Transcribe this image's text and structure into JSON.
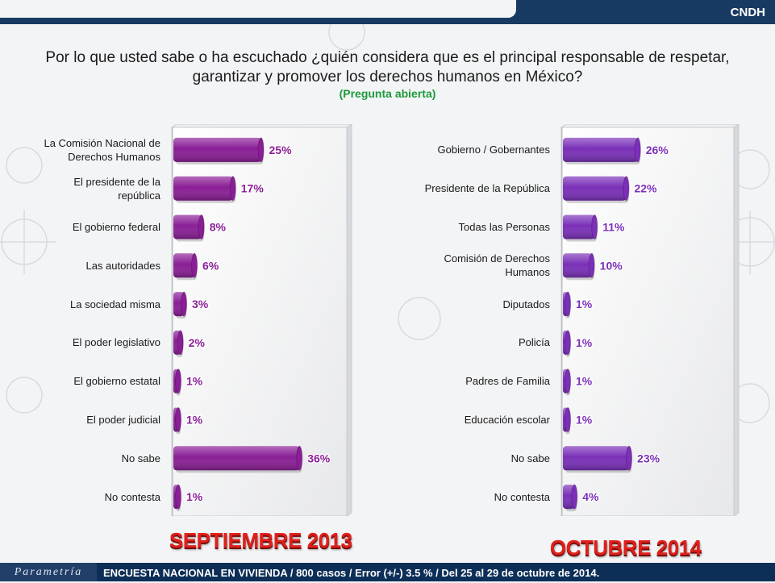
{
  "header": {
    "badge": "CNDH"
  },
  "question": {
    "line1": "Por lo que usted sabe o ha escuchado ¿quién considera que es el principal responsable de respetar,",
    "line2": "garantizar y promover los derechos humanos en México?",
    "note": "(Pregunta abierta)"
  },
  "colors": {
    "bar_left": "#8a1e96",
    "bar_right": "#7a30b8",
    "period": "#e0201b",
    "note": "#1d9b3c"
  },
  "chart_data": [
    {
      "type": "bar",
      "orientation": "horizontal",
      "period": "SEPTIEMBRE 2013",
      "categories": [
        "La Comisión Nacional de Derechos Humanos",
        "El presidente de la república",
        "El gobierno federal",
        "Las autoridades",
        "La sociedad misma",
        "El poder legislativo",
        "El gobierno estatal",
        "El poder judicial",
        "No sabe",
        "No contesta"
      ],
      "label_lines": [
        [
          "La Comisión Nacional de",
          "Derechos Humanos"
        ],
        [
          "El presidente de la",
          "república"
        ],
        [
          "El gobierno federal"
        ],
        [
          "Las autoridades"
        ],
        [
          "La sociedad misma"
        ],
        [
          "El poder legislativo"
        ],
        [
          "El gobierno estatal"
        ],
        [
          "El poder judicial"
        ],
        [
          "No sabe"
        ],
        [
          "No contesta"
        ]
      ],
      "values": [
        25,
        17,
        8,
        6,
        3,
        2,
        1,
        1,
        36,
        1
      ],
      "data_labels": [
        "25%",
        "17%",
        "8%",
        "6%",
        "3%",
        "2%",
        "1%",
        "1%",
        "36%",
        "1%"
      ],
      "xlim": [
        0,
        50
      ],
      "unit": "%"
    },
    {
      "type": "bar",
      "orientation": "horizontal",
      "period": "OCTUBRE 2014",
      "categories": [
        "Gobierno / Gobernantes",
        "Presidente de la República",
        "Todas las Personas",
        "Comisión de Derechos Humanos",
        "Diputados",
        "Policía",
        "Padres de Familia",
        "Educación escolar",
        "No sabe",
        "No contesta"
      ],
      "label_lines": [
        [
          "Gobierno / Gobernantes"
        ],
        [
          "Presidente de la República"
        ],
        [
          "Todas las Personas"
        ],
        [
          "Comisión de Derechos",
          "Humanos"
        ],
        [
          "Diputados"
        ],
        [
          "Policía"
        ],
        [
          "Padres de Familia"
        ],
        [
          "Educación escolar"
        ],
        [
          "No sabe"
        ],
        [
          "No contesta"
        ]
      ],
      "values": [
        26,
        22,
        11,
        10,
        1,
        1,
        1,
        1,
        23,
        4
      ],
      "data_labels": [
        "26%",
        "22%",
        "11%",
        "10%",
        "1%",
        "1%",
        "1%",
        "1%",
        "23%",
        "4%"
      ],
      "xlim": [
        0,
        60
      ],
      "unit": "%"
    }
  ],
  "footer": {
    "logo": "Parametría",
    "text": "ENCUESTA NACIONAL EN VIVIENDA / 800 casos / Error (+/-) 3.5 % / Del 25 al 29 de octubre de 2014."
  }
}
